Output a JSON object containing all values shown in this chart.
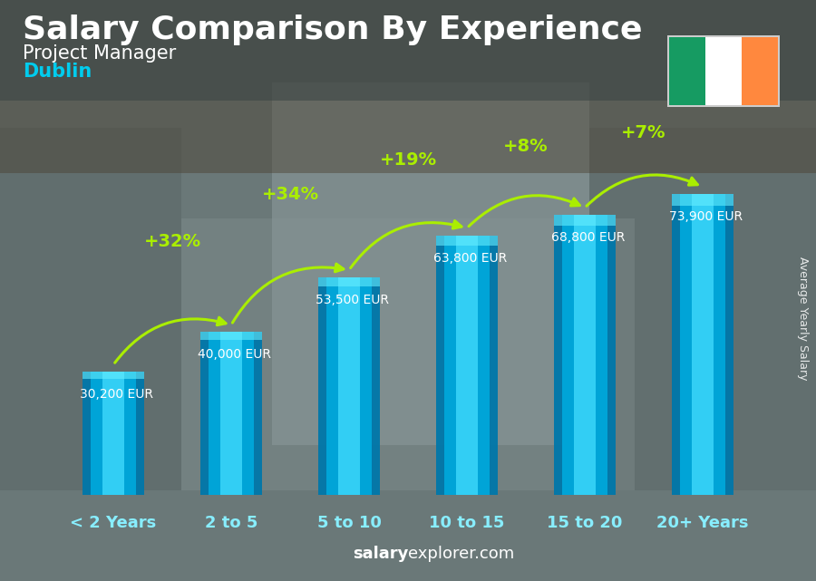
{
  "title": "Salary Comparison By Experience",
  "subtitle": "Project Manager",
  "city": "Dublin",
  "categories": [
    "< 2 Years",
    "2 to 5",
    "5 to 10",
    "10 to 15",
    "15 to 20",
    "20+ Years"
  ],
  "values": [
    30200,
    40000,
    53500,
    63800,
    68800,
    73900
  ],
  "val_texts": [
    "30,200 EUR",
    "40,000 EUR",
    "53,500 EUR",
    "63,800 EUR",
    "68,800 EUR",
    "73,900 EUR"
  ],
  "pct_changes": [
    "+32%",
    "+34%",
    "+19%",
    "+8%",
    "+7%"
  ],
  "bar_color_dark": "#0077aa",
  "bar_color_mid": "#00aadd",
  "bar_color_light": "#44ddff",
  "bg_color": "#7a8888",
  "bg_dark": "#556060",
  "title_color": "#ffffff",
  "subtitle_color": "#ffffff",
  "city_color": "#00ccee",
  "cat_color": "#88eeff",
  "pct_color": "#aaee00",
  "arrow_color": "#aaee00",
  "val_color": "#ffffff",
  "watermark_bold": "salary",
  "watermark_rest": "explorer.com",
  "side_label": "Average Yearly Salary",
  "ylim_max": 88000,
  "flag_green": "#169b62",
  "flag_white": "#ffffff",
  "flag_orange": "#ff883e",
  "title_fontsize": 26,
  "subtitle_fontsize": 15,
  "city_fontsize": 15,
  "cat_fontsize": 13,
  "val_fontsize": 10,
  "pct_fontsize": 14,
  "wm_fontsize": 13
}
